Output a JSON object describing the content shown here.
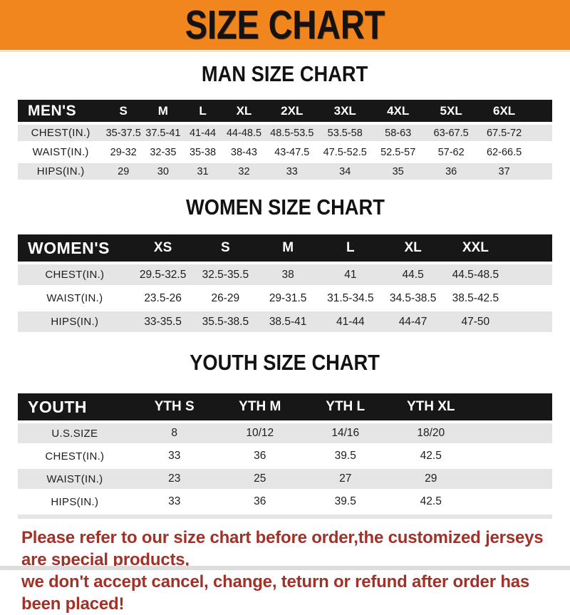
{
  "banner": {
    "title": "SIZE CHART"
  },
  "colors": {
    "banner_orange": "#f0861d",
    "table_header_black": "#171717",
    "row_gray": "#e5e5e5",
    "footer_red": "#a23128"
  },
  "sections": [
    {
      "title": "MAN SIZE CHART",
      "header_label": "MEN'S",
      "columns": [
        "S",
        "M",
        "L",
        "XL",
        "2XL",
        "3XL",
        "4XL",
        "5XL",
        "6XL"
      ],
      "rows": [
        {
          "label": "CHEST(IN.)",
          "values": [
            "35-37.5",
            "37.5-41",
            "41-44",
            "44-48.5",
            "48.5-53.5",
            "53.5-58",
            "58-63",
            "63-67.5",
            "67.5-72"
          ]
        },
        {
          "label": "WAIST(IN.)",
          "values": [
            "29-32",
            "32-35",
            "35-38",
            "38-43",
            "43-47.5",
            "47.5-52.5",
            "52.5-57",
            "57-62",
            "62-66.5"
          ]
        },
        {
          "label": "HIPS(IN.)",
          "values": [
            "29",
            "30",
            "31",
            "32",
            "33",
            "34",
            "35",
            "36",
            "37"
          ]
        }
      ]
    },
    {
      "title": "WOMEN SIZE CHART",
      "header_label": "WOMEN'S",
      "columns": [
        "XS",
        "S",
        "M",
        "L",
        "XL",
        "XXL"
      ],
      "rows": [
        {
          "label": "CHEST(IN.)",
          "values": [
            "29.5-32.5",
            "32.5-35.5",
            "38",
            "41",
            "44.5",
            "44.5-48.5"
          ]
        },
        {
          "label": "WAIST(IN.)",
          "values": [
            "23.5-26",
            "26-29",
            "29-31.5",
            "31.5-34.5",
            "34.5-38.5",
            "38.5-42.5"
          ]
        },
        {
          "label": "HIPS(IN.)",
          "values": [
            "33-35.5",
            "35.5-38.5",
            "38.5-41",
            "41-44",
            "44-47",
            "47-50"
          ]
        }
      ]
    },
    {
      "title": "YOUTH SIZE CHART",
      "header_label": "YOUTH",
      "columns": [
        "YTH S",
        "YTH M",
        "YTH L",
        "YTH XL"
      ],
      "rows": [
        {
          "label": "U.S.SIZE",
          "values": [
            "8",
            "10/12",
            "14/16",
            "18/20"
          ]
        },
        {
          "label": "CHEST(IN.)",
          "values": [
            "33",
            "36",
            "39.5",
            "42.5"
          ]
        },
        {
          "label": "WAIST(IN.)",
          "values": [
            "23",
            "25",
            "27",
            "29"
          ]
        },
        {
          "label": "HIPS(IN.)",
          "values": [
            "33",
            "36",
            "39.5",
            "42.5"
          ]
        }
      ]
    }
  ],
  "footer": {
    "line1": "Please refer to our size chart before order,the customized jerseys are special products,",
    "line2": "we don't accept cancel, change, teturn or refund after order has been placed!"
  }
}
